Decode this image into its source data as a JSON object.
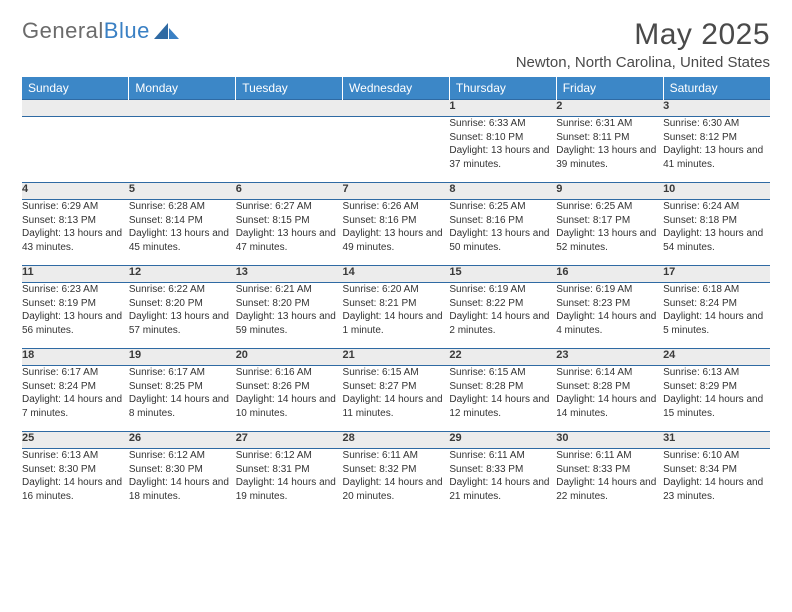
{
  "brand": {
    "part1": "General",
    "part2": "Blue"
  },
  "title": "May 2025",
  "location": "Newton, North Carolina, United States",
  "colors": {
    "header_bg": "#3c87c7",
    "header_text": "#ffffff",
    "daynum_bg": "#ececec",
    "border": "#2f6aa3",
    "brand_blue": "#3a80c4",
    "text": "#333333"
  },
  "dayNames": [
    "Sunday",
    "Monday",
    "Tuesday",
    "Wednesday",
    "Thursday",
    "Friday",
    "Saturday"
  ],
  "startOffset": 4,
  "days": [
    {
      "n": 1,
      "sunrise": "6:33 AM",
      "sunset": "8:10 PM",
      "daylight": "13 hours and 37 minutes."
    },
    {
      "n": 2,
      "sunrise": "6:31 AM",
      "sunset": "8:11 PM",
      "daylight": "13 hours and 39 minutes."
    },
    {
      "n": 3,
      "sunrise": "6:30 AM",
      "sunset": "8:12 PM",
      "daylight": "13 hours and 41 minutes."
    },
    {
      "n": 4,
      "sunrise": "6:29 AM",
      "sunset": "8:13 PM",
      "daylight": "13 hours and 43 minutes."
    },
    {
      "n": 5,
      "sunrise": "6:28 AM",
      "sunset": "8:14 PM",
      "daylight": "13 hours and 45 minutes."
    },
    {
      "n": 6,
      "sunrise": "6:27 AM",
      "sunset": "8:15 PM",
      "daylight": "13 hours and 47 minutes."
    },
    {
      "n": 7,
      "sunrise": "6:26 AM",
      "sunset": "8:16 PM",
      "daylight": "13 hours and 49 minutes."
    },
    {
      "n": 8,
      "sunrise": "6:25 AM",
      "sunset": "8:16 PM",
      "daylight": "13 hours and 50 minutes."
    },
    {
      "n": 9,
      "sunrise": "6:25 AM",
      "sunset": "8:17 PM",
      "daylight": "13 hours and 52 minutes."
    },
    {
      "n": 10,
      "sunrise": "6:24 AM",
      "sunset": "8:18 PM",
      "daylight": "13 hours and 54 minutes."
    },
    {
      "n": 11,
      "sunrise": "6:23 AM",
      "sunset": "8:19 PM",
      "daylight": "13 hours and 56 minutes."
    },
    {
      "n": 12,
      "sunrise": "6:22 AM",
      "sunset": "8:20 PM",
      "daylight": "13 hours and 57 minutes."
    },
    {
      "n": 13,
      "sunrise": "6:21 AM",
      "sunset": "8:20 PM",
      "daylight": "13 hours and 59 minutes."
    },
    {
      "n": 14,
      "sunrise": "6:20 AM",
      "sunset": "8:21 PM",
      "daylight": "14 hours and 1 minute."
    },
    {
      "n": 15,
      "sunrise": "6:19 AM",
      "sunset": "8:22 PM",
      "daylight": "14 hours and 2 minutes."
    },
    {
      "n": 16,
      "sunrise": "6:19 AM",
      "sunset": "8:23 PM",
      "daylight": "14 hours and 4 minutes."
    },
    {
      "n": 17,
      "sunrise": "6:18 AM",
      "sunset": "8:24 PM",
      "daylight": "14 hours and 5 minutes."
    },
    {
      "n": 18,
      "sunrise": "6:17 AM",
      "sunset": "8:24 PM",
      "daylight": "14 hours and 7 minutes."
    },
    {
      "n": 19,
      "sunrise": "6:17 AM",
      "sunset": "8:25 PM",
      "daylight": "14 hours and 8 minutes."
    },
    {
      "n": 20,
      "sunrise": "6:16 AM",
      "sunset": "8:26 PM",
      "daylight": "14 hours and 10 minutes."
    },
    {
      "n": 21,
      "sunrise": "6:15 AM",
      "sunset": "8:27 PM",
      "daylight": "14 hours and 11 minutes."
    },
    {
      "n": 22,
      "sunrise": "6:15 AM",
      "sunset": "8:28 PM",
      "daylight": "14 hours and 12 minutes."
    },
    {
      "n": 23,
      "sunrise": "6:14 AM",
      "sunset": "8:28 PM",
      "daylight": "14 hours and 14 minutes."
    },
    {
      "n": 24,
      "sunrise": "6:13 AM",
      "sunset": "8:29 PM",
      "daylight": "14 hours and 15 minutes."
    },
    {
      "n": 25,
      "sunrise": "6:13 AM",
      "sunset": "8:30 PM",
      "daylight": "14 hours and 16 minutes."
    },
    {
      "n": 26,
      "sunrise": "6:12 AM",
      "sunset": "8:30 PM",
      "daylight": "14 hours and 18 minutes."
    },
    {
      "n": 27,
      "sunrise": "6:12 AM",
      "sunset": "8:31 PM",
      "daylight": "14 hours and 19 minutes."
    },
    {
      "n": 28,
      "sunrise": "6:11 AM",
      "sunset": "8:32 PM",
      "daylight": "14 hours and 20 minutes."
    },
    {
      "n": 29,
      "sunrise": "6:11 AM",
      "sunset": "8:33 PM",
      "daylight": "14 hours and 21 minutes."
    },
    {
      "n": 30,
      "sunrise": "6:11 AM",
      "sunset": "8:33 PM",
      "daylight": "14 hours and 22 minutes."
    },
    {
      "n": 31,
      "sunrise": "6:10 AM",
      "sunset": "8:34 PM",
      "daylight": "14 hours and 23 minutes."
    }
  ],
  "labels": {
    "sunrise": "Sunrise:",
    "sunset": "Sunset:",
    "daylight": "Daylight:"
  }
}
